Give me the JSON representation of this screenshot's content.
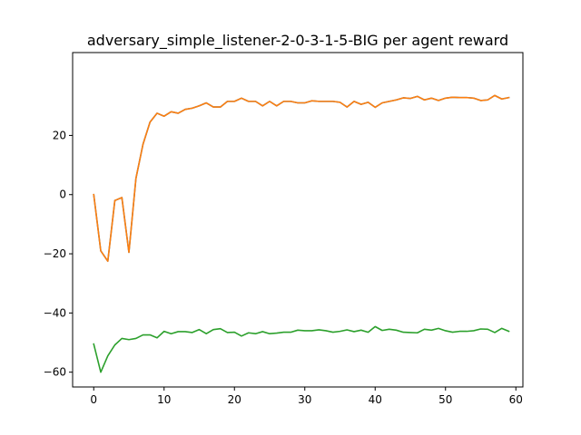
{
  "chart_data": {
    "type": "line",
    "title": "adversary_simple_listener-2-0-3-1-5-BIG per agent reward",
    "xlabel": "",
    "ylabel": "",
    "xlim": [
      -3,
      61
    ],
    "ylim": [
      -65,
      48
    ],
    "grid": false,
    "xticks": [
      0,
      10,
      20,
      30,
      40,
      50,
      60
    ],
    "yticks": [
      -60,
      -40,
      -20,
      0,
      20
    ],
    "x": [
      0,
      1,
      2,
      3,
      4,
      5,
      6,
      7,
      8,
      9,
      10,
      11,
      12,
      13,
      14,
      15,
      16,
      17,
      18,
      19,
      20,
      21,
      22,
      23,
      24,
      25,
      26,
      27,
      28,
      29,
      30,
      31,
      32,
      33,
      34,
      35,
      36,
      37,
      38,
      39,
      40,
      41,
      42,
      43,
      44,
      45,
      46,
      47,
      48,
      49,
      50,
      51,
      52,
      53,
      54,
      55,
      56,
      57,
      58,
      59
    ],
    "series": [
      {
        "color": "#1f77b4",
        "values": [
          0.0,
          -19.0,
          -22.5,
          -2.0,
          -1.0,
          -19.5,
          5.5,
          17.0,
          24.5,
          27.5,
          26.5,
          28.0,
          27.5,
          28.8,
          29.2,
          30.0,
          31.0,
          29.6,
          29.6,
          31.5,
          31.5,
          32.6,
          31.5,
          31.5,
          30.0,
          31.5,
          30.0,
          31.5,
          31.5,
          31.0,
          31.0,
          31.7,
          31.5,
          31.5,
          31.5,
          31.2,
          29.6,
          31.5,
          30.5,
          31.2,
          29.5,
          31.0,
          31.5,
          32.0,
          32.7,
          32.5,
          33.2,
          32.0,
          32.6,
          31.8,
          32.6,
          32.9,
          32.8,
          32.8,
          32.6,
          31.8,
          32.0,
          33.5,
          32.3,
          32.8
        ]
      },
      {
        "color": "#ff7f0e",
        "values": [
          0.0,
          -19.0,
          -22.5,
          -2.0,
          -1.0,
          -19.5,
          5.5,
          17.0,
          24.5,
          27.5,
          26.5,
          28.0,
          27.5,
          28.8,
          29.2,
          30.0,
          31.0,
          29.6,
          29.6,
          31.5,
          31.5,
          32.6,
          31.5,
          31.5,
          30.0,
          31.5,
          30.0,
          31.5,
          31.5,
          31.0,
          31.0,
          31.7,
          31.5,
          31.5,
          31.5,
          31.2,
          29.6,
          31.5,
          30.5,
          31.2,
          29.5,
          31.0,
          31.5,
          32.0,
          32.7,
          32.5,
          33.2,
          32.0,
          32.6,
          31.8,
          32.6,
          32.9,
          32.8,
          32.8,
          32.6,
          31.8,
          32.0,
          33.5,
          32.3,
          32.8
        ]
      },
      {
        "color": "#2ca02c",
        "values": [
          -50.5,
          -60.0,
          -54.5,
          -50.8,
          -48.6,
          -49.0,
          -48.6,
          -47.4,
          -47.4,
          -48.4,
          -46.2,
          -47.0,
          -46.3,
          -46.3,
          -46.6,
          -45.6,
          -47.0,
          -45.6,
          -45.3,
          -46.6,
          -46.5,
          -47.8,
          -46.7,
          -47.0,
          -46.3,
          -47.0,
          -46.8,
          -46.5,
          -46.5,
          -45.8,
          -46.0,
          -46.0,
          -45.7,
          -46.0,
          -46.5,
          -46.2,
          -45.7,
          -46.3,
          -45.8,
          -46.5,
          -44.6,
          -45.9,
          -45.5,
          -45.8,
          -46.5,
          -46.6,
          -46.7,
          -45.5,
          -45.8,
          -45.2,
          -46.0,
          -46.5,
          -46.2,
          -46.2,
          -46.0,
          -45.4,
          -45.5,
          -46.6,
          -45.2,
          -46.2
        ]
      }
    ]
  }
}
